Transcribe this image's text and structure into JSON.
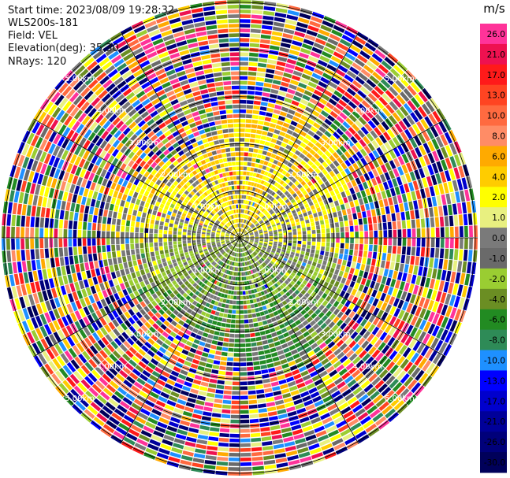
{
  "info": {
    "start_time": "Start time: 2023/08/09 19:28:32",
    "instrument": "WLS200s-181",
    "field": "Field: VEL",
    "elevation": "Elevation(deg): 35.30",
    "nrays": "NRays: 120"
  },
  "chart_data": {
    "type": "heatmap",
    "projection": "polar-ppi",
    "title": "",
    "xlabel": "",
    "ylabel": "",
    "rays": 120,
    "max_range_km": 5.0,
    "range_rings_km": [
      1.0,
      2.0,
      3.0,
      4.0,
      5.0
    ],
    "range_labels": [
      "1.00km",
      "2.00km",
      "3.00km",
      "4.00km",
      "5.00km"
    ],
    "spoke_angles_deg": [
      0,
      30,
      60,
      90,
      120,
      150,
      180,
      210,
      240,
      270,
      300,
      330
    ],
    "colorbar": {
      "unit": "m/s",
      "tick_labels": [
        "26.0",
        "21.0",
        "17.0",
        "13.0",
        "10.0",
        "8.0",
        "6.0",
        "4.0",
        "2.0",
        "1.0",
        "0.0",
        "-1.0",
        "-2.0",
        "-4.0",
        "-6.0",
        "-8.0",
        "-10.0",
        "-13.0",
        "-17.0",
        "-21.0",
        "-26.0",
        "-30.0"
      ],
      "colors": [
        "#ff3399",
        "#ee1150",
        "#ff1a1a",
        "#ff4422",
        "#ff6a40",
        "#ff8c66",
        "#ffaa00",
        "#ffcc00",
        "#ffff00",
        "#e8f080",
        "#7a7a7a",
        "#6a6a6a",
        "#9acd32",
        "#6b8e23",
        "#228b22",
        "#2e8b57",
        "#1e90ff",
        "#0000ff",
        "#0000cd",
        "#000099",
        "#00007a",
        "#00005a"
      ]
    },
    "pattern_summary": "near-range: yellow/orange positive to north, green/olive negative to south, grey near zero; far-range: noisy multicolor"
  }
}
